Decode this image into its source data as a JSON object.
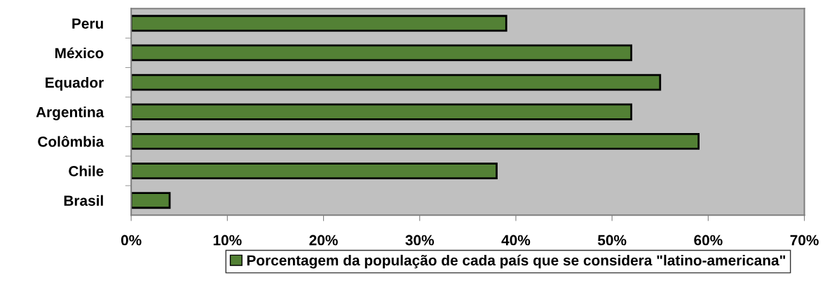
{
  "chart_data": {
    "type": "bar",
    "orientation": "horizontal",
    "categories": [
      "Peru",
      "México",
      "Equador",
      "Argentina",
      "Colômbia",
      "Chile",
      "Brasil"
    ],
    "series": [
      {
        "name": "Porcentagem da população de cada país que se considera \"latino-americana\"",
        "color": "#538135",
        "values": [
          39,
          52,
          55,
          52,
          59,
          38,
          4
        ]
      }
    ],
    "xlim": [
      0,
      70
    ],
    "xticks": [
      {
        "value": 0,
        "label": "0%"
      },
      {
        "value": 10,
        "label": "10%"
      },
      {
        "value": 20,
        "label": "20%"
      },
      {
        "value": 30,
        "label": "30%"
      },
      {
        "value": 40,
        "label": "40%"
      },
      {
        "value": 50,
        "label": "50%"
      },
      {
        "value": 60,
        "label": "60%"
      },
      {
        "value": 70,
        "label": "70%"
      }
    ],
    "grid": false,
    "legend": "bottom"
  }
}
